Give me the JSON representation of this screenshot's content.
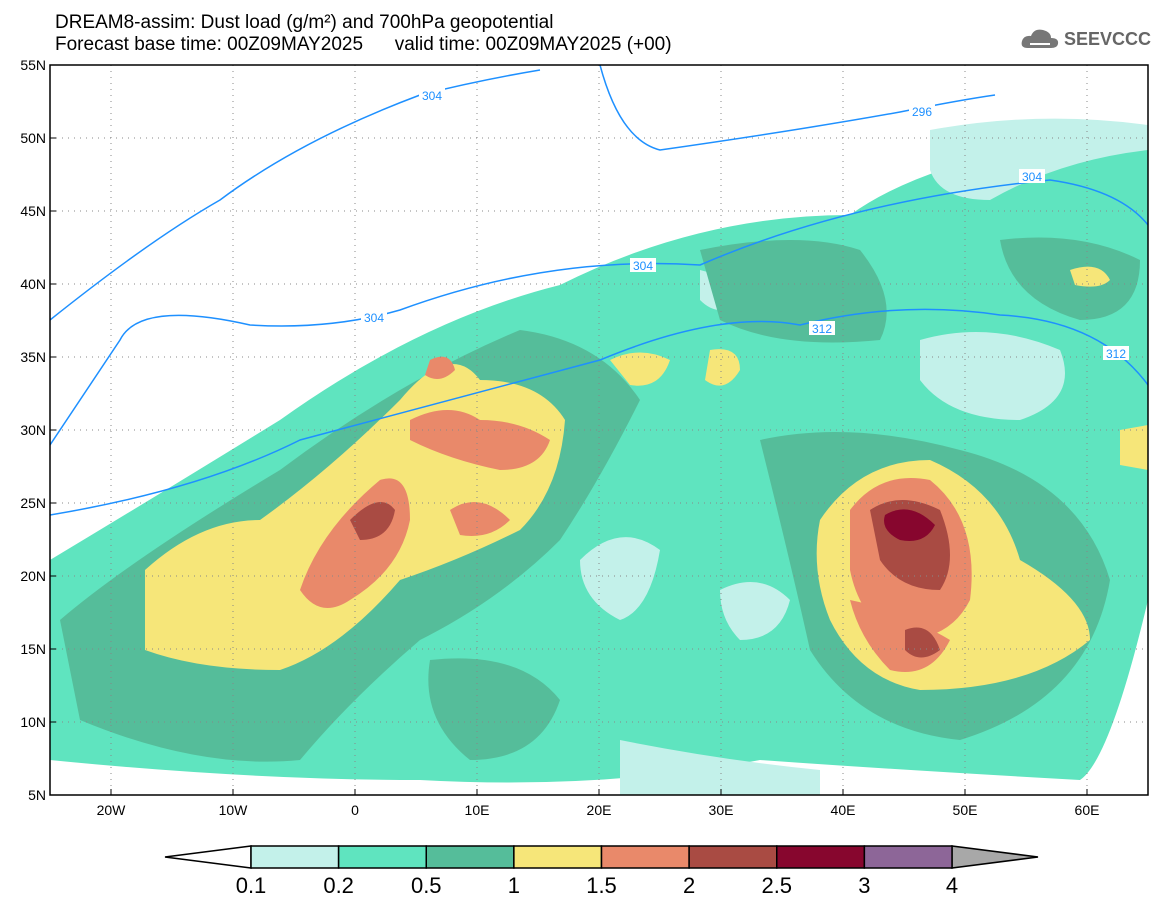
{
  "title": "DREAM8-assim: Dust load (g/m²) and 700hPa geopotential",
  "subtitle": "Forecast base time: 00Z09MAY2025      valid time: 00Z09MAY2025 (+00)",
  "logo": "SEEVCCC",
  "map": {
    "lon_range": [
      -25,
      65
    ],
    "lat_range": [
      5,
      55
    ],
    "lat_labels": [
      "55N",
      "50N",
      "45N",
      "40N",
      "35N",
      "30N",
      "25N",
      "20N",
      "15N",
      "10N",
      "5N"
    ],
    "lon_labels": [
      "20W",
      "10W",
      "0",
      "10E",
      "20E",
      "30E",
      "40E",
      "50E",
      "60E"
    ],
    "contour_labels": [
      "304",
      "296",
      "304",
      "304",
      "304",
      "312",
      "312"
    ]
  },
  "colorbar": {
    "labels": [
      "0.1",
      "0.2",
      "0.5",
      "1",
      "1.5",
      "2",
      "2.5",
      "3",
      "4"
    ],
    "colors": [
      "#c3f1ea",
      "#5fe4bf",
      "#55bd9a",
      "#f6e679",
      "#e9896a",
      "#a94b43",
      "#87062e",
      "#8d6698"
    ],
    "under_color": "#ffffff",
    "over_color": "#a8a8a8"
  }
}
